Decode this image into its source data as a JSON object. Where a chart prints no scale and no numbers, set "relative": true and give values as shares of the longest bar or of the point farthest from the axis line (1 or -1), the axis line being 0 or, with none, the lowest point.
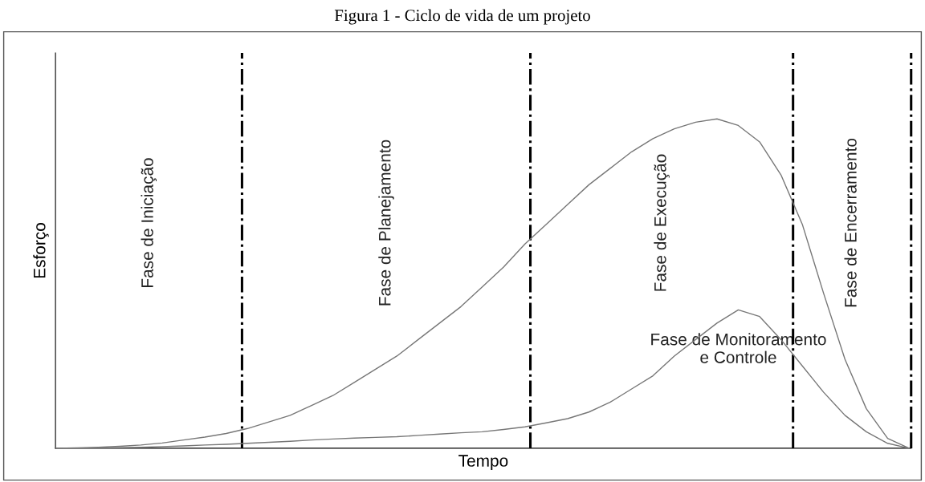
{
  "chart_data": {
    "type": "line",
    "title": "Figura 1 - Ciclo de vida de um projeto",
    "xlabel": "Tempo",
    "ylabel": "Esforço",
    "relative": true,
    "categories": [
      null,
      null,
      null,
      null,
      null,
      null,
      null,
      null,
      null,
      null,
      null,
      null,
      null,
      null,
      null,
      null,
      null,
      null,
      null,
      null,
      null,
      null,
      null,
      null,
      null,
      null,
      null,
      null,
      null,
      null,
      null,
      null,
      null,
      null,
      null,
      null,
      null,
      null,
      null,
      null,
      null
    ],
    "series": [
      {
        "color": "#777777",
        "values": [
          0,
          0.001,
          0.003,
          0.006,
          0.01,
          0.016,
          0.025,
          0.034,
          0.045,
          0.06,
          0.08,
          0.1,
          0.13,
          0.16,
          0.2,
          0.24,
          0.28,
          0.33,
          0.38,
          0.43,
          0.49,
          0.55,
          0.62,
          0.68,
          0.74,
          0.8,
          0.85,
          0.9,
          0.94,
          0.97,
          0.99,
          1.0,
          0.98,
          0.93,
          0.83,
          0.68,
          0.47,
          0.27,
          0.12,
          0.03,
          0
        ]
      },
      {
        "name": "Fase de Monitoramento\ne Controle",
        "color": "#777777",
        "values": [
          0,
          0,
          0.001,
          0.002,
          0.003,
          0.005,
          0.007,
          0.01,
          0.012,
          0.015,
          0.018,
          0.021,
          0.025,
          0.028,
          0.031,
          0.033,
          0.035,
          0.039,
          0.043,
          0.047,
          0.05,
          0.057,
          0.065,
          0.077,
          0.09,
          0.11,
          0.14,
          0.18,
          0.22,
          0.28,
          0.33,
          0.38,
          0.42,
          0.4,
          0.33,
          0.25,
          0.17,
          0.1,
          0.05,
          0.015,
          0
        ]
      }
    ],
    "annotations": [
      "Fase de Iniciação",
      "Fase de Planejamento",
      "Fase de Execução",
      "Fase de Encerramento"
    ],
    "grid": false,
    "legend": false
  }
}
